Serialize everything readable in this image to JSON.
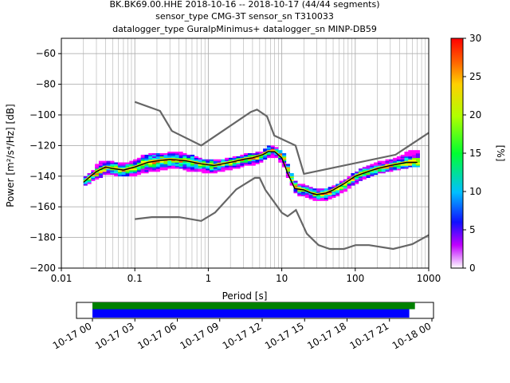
{
  "title": {
    "line1": "BK.BK69.00.HHE   2018-10-16 -- 2018-10-17  (44/44 segments)",
    "line2": "sensor_type CMG-3T sensor_sn T310033",
    "line3": "datalogger_type GuralpMinimus+ datalogger_sn MINP-DB59"
  },
  "colors": {
    "model_curves": "#666666",
    "mode_line": "#000000",
    "mean_line": "#ffd700",
    "coverage_green": "#008000",
    "coverage_blue": "#0000ff"
  },
  "chart_data": [
    {
      "type": "heatmap",
      "xlabel": "Period [s]",
      "ylabel": "Power [m²/s⁴/Hz] [dB]",
      "x_scale": "log",
      "xlim": [
        0.01,
        1000
      ],
      "ylim": [
        -200,
        -50
      ],
      "xticks": [
        0.01,
        0.1,
        1,
        10,
        100,
        1000
      ],
      "xtick_labels": [
        "0.01",
        "0.1",
        "1",
        "10",
        "100",
        "1000"
      ],
      "yticks": [
        -200,
        -180,
        -160,
        -140,
        -120,
        -100,
        -80,
        -60
      ],
      "ytick_labels": [
        "−200",
        "−180",
        "−160",
        "−140",
        "−120",
        "−100",
        "−80",
        "−60"
      ],
      "grid": true,
      "colorbar": {
        "label": "[%]",
        "range": [
          0,
          30
        ],
        "ticks": [
          0,
          5,
          10,
          15,
          20,
          25,
          30
        ],
        "tick_labels": [
          "0",
          "5",
          "10",
          "15",
          "20",
          "25",
          "30"
        ]
      },
      "model_high": [
        [
          0.1,
          -91.5
        ],
        [
          0.22,
          -97.4
        ],
        [
          0.32,
          -110.5
        ],
        [
          0.8,
          -120
        ],
        [
          3.8,
          -98
        ],
        [
          4.6,
          -96.5
        ],
        [
          6.3,
          -101
        ],
        [
          7.9,
          -113.5
        ],
        [
          15.4,
          -120
        ],
        [
          20,
          -138.5
        ],
        [
          354,
          -126
        ],
        [
          10000,
          -80
        ]
      ],
      "model_low": [
        [
          0.1,
          -168
        ],
        [
          0.17,
          -166.7
        ],
        [
          0.4,
          -166.7
        ],
        [
          0.8,
          -169.2
        ],
        [
          1.24,
          -163.7
        ],
        [
          2.4,
          -148.6
        ],
        [
          4.3,
          -141.1
        ],
        [
          5,
          -141.1
        ],
        [
          6,
          -149
        ],
        [
          10,
          -163.8
        ],
        [
          12,
          -166.2
        ],
        [
          15.6,
          -162.1
        ],
        [
          21.9,
          -177.5
        ],
        [
          31.6,
          -185
        ],
        [
          45,
          -187.5
        ],
        [
          70,
          -187.5
        ],
        [
          101,
          -185
        ],
        [
          154,
          -185
        ],
        [
          328,
          -187.5
        ],
        [
          600,
          -184.4
        ],
        [
          10000,
          -151.9
        ]
      ],
      "mode_curve": [
        [
          0.02,
          -144
        ],
        [
          0.025,
          -140
        ],
        [
          0.03,
          -137
        ],
        [
          0.04,
          -134
        ],
        [
          0.05,
          -135
        ],
        [
          0.07,
          -136
        ],
        [
          0.1,
          -134
        ],
        [
          0.15,
          -131
        ],
        [
          0.2,
          -130
        ],
        [
          0.3,
          -129
        ],
        [
          0.5,
          -130
        ],
        [
          0.8,
          -132
        ],
        [
          1.2,
          -133
        ],
        [
          2,
          -131
        ],
        [
          3,
          -129
        ],
        [
          4,
          -128
        ],
        [
          5.5,
          -126
        ],
        [
          6.5,
          -124
        ],
        [
          8,
          -124
        ],
        [
          10,
          -128
        ],
        [
          12,
          -138
        ],
        [
          15,
          -148
        ],
        [
          20,
          -149
        ],
        [
          25,
          -151
        ],
        [
          30,
          -152
        ],
        [
          40,
          -151
        ],
        [
          50,
          -149
        ],
        [
          70,
          -145
        ],
        [
          100,
          -140
        ],
        [
          150,
          -137
        ],
        [
          200,
          -135
        ],
        [
          300,
          -133
        ],
        [
          500,
          -131
        ],
        [
          700,
          -131
        ]
      ],
      "band_columns": [
        [
          0.02,
          -146,
          -140,
          -143
        ],
        [
          0.025,
          -143,
          -137,
          -140
        ],
        [
          0.03,
          -141,
          -131,
          -137
        ],
        [
          0.04,
          -138,
          -130,
          -134
        ],
        [
          0.05,
          -139,
          -131,
          -135
        ],
        [
          0.06,
          -140,
          -131,
          -136
        ],
        [
          0.07,
          -140,
          -132,
          -136
        ],
        [
          0.08,
          -140,
          -131,
          -135
        ],
        [
          0.1,
          -139,
          -129,
          -134
        ],
        [
          0.12,
          -138,
          -127,
          -132
        ],
        [
          0.15,
          -137,
          -126,
          -131
        ],
        [
          0.2,
          -136,
          -125,
          -130
        ],
        [
          0.25,
          -135,
          -125,
          -130
        ],
        [
          0.3,
          -135,
          -124,
          -129
        ],
        [
          0.4,
          -135,
          -125,
          -130
        ],
        [
          0.5,
          -136,
          -126,
          -130
        ],
        [
          0.6,
          -137,
          -127,
          -131
        ],
        [
          0.8,
          -137,
          -129,
          -132
        ],
        [
          1,
          -138,
          -129,
          -133
        ],
        [
          1.2,
          -137,
          -130,
          -133
        ],
        [
          1.5,
          -136,
          -129,
          -132
        ],
        [
          2,
          -135,
          -128,
          -131
        ],
        [
          2.5,
          -134,
          -127,
          -130
        ],
        [
          3,
          -133,
          -126,
          -129
        ],
        [
          4,
          -132,
          -125,
          -128
        ],
        [
          5,
          -130,
          -124,
          -127
        ],
        [
          6,
          -128,
          -121,
          -124
        ],
        [
          7,
          -127,
          -120,
          -123
        ],
        [
          8,
          -128,
          -122,
          -124
        ],
        [
          10,
          -133,
          -125,
          -128
        ],
        [
          12,
          -143,
          -135,
          -138
        ],
        [
          15,
          -152,
          -145,
          -148
        ],
        [
          20,
          -153,
          -146,
          -149
        ],
        [
          25,
          -155,
          -148,
          -151
        ],
        [
          30,
          -156,
          -149,
          -152
        ],
        [
          40,
          -155,
          -148,
          -151
        ],
        [
          50,
          -153,
          -146,
          -149
        ],
        [
          60,
          -151,
          -144,
          -147
        ],
        [
          70,
          -149,
          -142,
          -145
        ],
        [
          80,
          -147,
          -140,
          -143
        ],
        [
          100,
          -144,
          -137,
          -140
        ],
        [
          120,
          -142,
          -135,
          -138
        ],
        [
          150,
          -140,
          -133,
          -137
        ],
        [
          200,
          -138,
          -131,
          -135
        ],
        [
          300,
          -136,
          -129,
          -133
        ],
        [
          400,
          -135,
          -127,
          -132
        ],
        [
          500,
          -134,
          -124,
          -131
        ],
        [
          600,
          -134,
          -123,
          -131
        ],
        [
          700,
          -134,
          -123,
          -131
        ]
      ]
    },
    {
      "type": "timeline",
      "xlim": [
        "2018-10-16 23:00",
        "2018-10-18 00:30"
      ],
      "xtick_labels": [
        "10-17 00",
        "10-17 03",
        "10-17 06",
        "10-17 09",
        "10-17 12",
        "10-17 15",
        "10-17 18",
        "10-17 21",
        "10-18 00"
      ],
      "xtick_hours": [
        0,
        3,
        6,
        9,
        12,
        15,
        18,
        21,
        24
      ],
      "coverage_bars": [
        {
          "start_hour": 0,
          "end_hour": 22.8,
          "color": "green"
        },
        {
          "start_hour": 0,
          "end_hour": 22.4,
          "color": "blue"
        }
      ]
    }
  ]
}
